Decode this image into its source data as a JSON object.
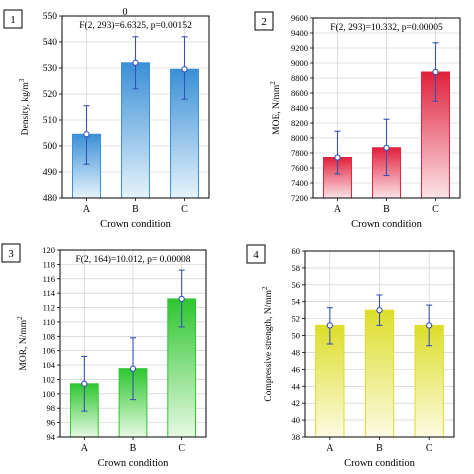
{
  "figure": {
    "top_label": "0"
  },
  "chart_data": [
    {
      "type": "bar",
      "panel_number": "1",
      "annotation": "F(2, 293)=6.6325, p=0.00152",
      "xlabel": "Crown condition",
      "ylabel": "Density, kg/m",
      "ylabel_sup": "3",
      "categories": [
        "A",
        "B",
        "C"
      ],
      "values": [
        504.5,
        532,
        529.5
      ],
      "error_low": [
        493,
        522,
        518
      ],
      "error_high": [
        515.5,
        542,
        542
      ],
      "ylim": [
        480,
        550
      ],
      "yticks": [
        480,
        490,
        500,
        510,
        520,
        530,
        540,
        550
      ],
      "grid": true,
      "color": "#3a8fd6",
      "color_light": "#e6f3fc"
    },
    {
      "type": "bar",
      "panel_number": "2",
      "annotation": "F(2, 293)=10.332, p=0.00005",
      "xlabel": "Crown condition",
      "ylabel": "MOE, N/mm",
      "ylabel_sup": "2",
      "categories": [
        "A",
        "B",
        "C"
      ],
      "values": [
        7740,
        7870,
        8880
      ],
      "error_low": [
        7520,
        7500,
        8490
      ],
      "error_high": [
        8090,
        8250,
        9270
      ],
      "ylim": [
        7200,
        9600
      ],
      "yticks": [
        7200,
        7400,
        7600,
        7800,
        8000,
        8200,
        8400,
        8600,
        8800,
        9000,
        9200,
        9400,
        9600
      ],
      "grid": true,
      "color": "#e0203c",
      "color_light": "#fbe4e8"
    },
    {
      "type": "bar",
      "panel_number": "3",
      "annotation": "F(2, 164)=10.012, p= 0.00008",
      "xlabel": "Crown condition",
      "ylabel": "MOR, N/mm",
      "ylabel_sup": "2",
      "categories": [
        "A",
        "B",
        "C"
      ],
      "values": [
        101.4,
        103.5,
        113.2
      ],
      "error_low": [
        97.6,
        99.2,
        109.3
      ],
      "error_high": [
        105.2,
        107.8,
        117.2
      ],
      "ylim": [
        94,
        120
      ],
      "yticks": [
        94,
        96,
        98,
        100,
        102,
        104,
        106,
        108,
        110,
        112,
        114,
        116,
        118,
        120
      ],
      "grid": true,
      "color": "#2ec62e",
      "color_light": "#e6f9e3"
    },
    {
      "type": "bar",
      "panel_number": "4",
      "annotation": "",
      "xlabel": "Crown condition",
      "ylabel": "Compressive strength, N/mm",
      "ylabel_sup": "2",
      "categories": [
        "A",
        "B",
        "C"
      ],
      "values": [
        51.2,
        53,
        51.2
      ],
      "error_low": [
        49,
        51.2,
        48.8
      ],
      "error_high": [
        53.3,
        54.8,
        53.6
      ],
      "ylim": [
        38,
        60
      ],
      "yticks": [
        38,
        40,
        42,
        44,
        46,
        48,
        50,
        52,
        54,
        56,
        58,
        60
      ],
      "grid": true,
      "color": "#dddd2a",
      "color_light": "#fbfbe2"
    }
  ]
}
